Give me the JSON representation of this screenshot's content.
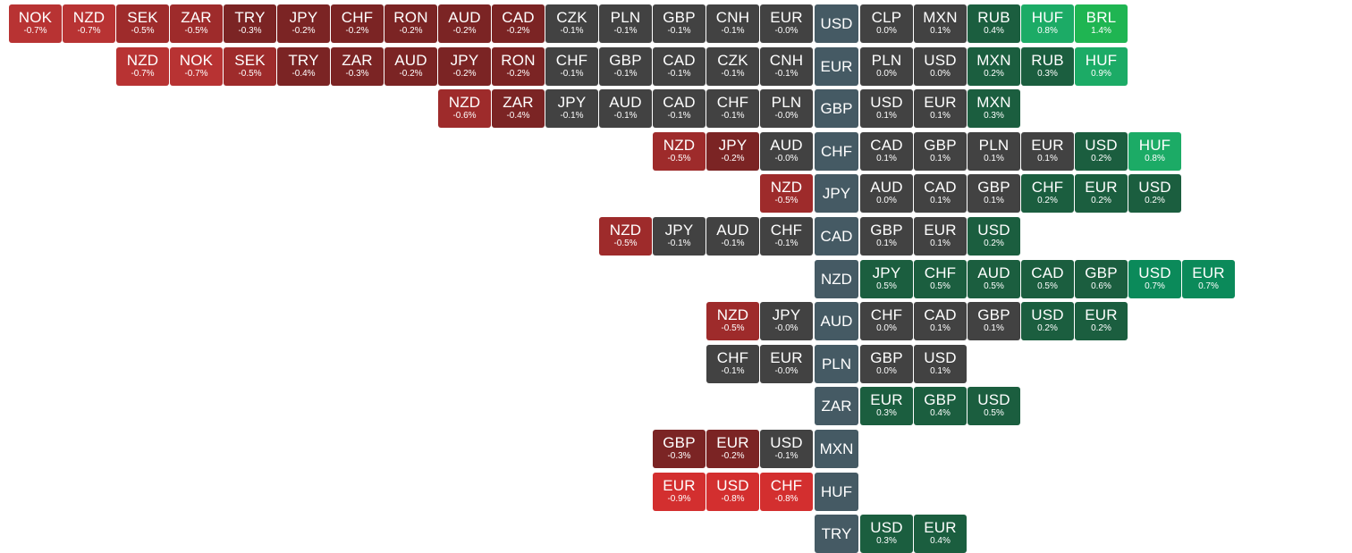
{
  "colors": {
    "base": "#455a64",
    "neutral": "#424242",
    "neg_1": "#7b2424",
    "neg_2": "#9e2b2b",
    "neg_3": "#b83333",
    "neg_4": "#d32f2f",
    "pos_1": "#1b5e3f",
    "pos_2": "#0b8a5a",
    "pos_3": "#1cab66",
    "pos_4": "#1fb552"
  },
  "chart_data": {
    "type": "heatmap",
    "unit": "%",
    "rows": [
      {
        "base": "USD",
        "weaker": [
          {
            "code": "NOK",
            "change": -0.7,
            "label": "-0.7%"
          },
          {
            "code": "NZD",
            "change": -0.7,
            "label": "-0.7%"
          },
          {
            "code": "SEK",
            "change": -0.5,
            "label": "-0.5%"
          },
          {
            "code": "ZAR",
            "change": -0.5,
            "label": "-0.5%"
          },
          {
            "code": "TRY",
            "change": -0.3,
            "label": "-0.3%"
          },
          {
            "code": "JPY",
            "change": -0.2,
            "label": "-0.2%"
          },
          {
            "code": "CHF",
            "change": -0.2,
            "label": "-0.2%"
          },
          {
            "code": "RON",
            "change": -0.2,
            "label": "-0.2%"
          },
          {
            "code": "AUD",
            "change": -0.2,
            "label": "-0.2%"
          },
          {
            "code": "CAD",
            "change": -0.2,
            "label": "-0.2%"
          },
          {
            "code": "CZK",
            "change": -0.1,
            "label": "-0.1%"
          },
          {
            "code": "PLN",
            "change": -0.1,
            "label": "-0.1%"
          },
          {
            "code": "GBP",
            "change": -0.1,
            "label": "-0.1%"
          },
          {
            "code": "CNH",
            "change": -0.1,
            "label": "-0.1%"
          },
          {
            "code": "EUR",
            "change": -0.0,
            "label": "-0.0%"
          }
        ],
        "stronger": [
          {
            "code": "CLP",
            "change": 0.0,
            "label": "0.0%"
          },
          {
            "code": "MXN",
            "change": 0.1,
            "label": "0.1%"
          },
          {
            "code": "RUB",
            "change": 0.4,
            "label": "0.4%"
          },
          {
            "code": "HUF",
            "change": 0.8,
            "label": "0.8%"
          },
          {
            "code": "BRL",
            "change": 1.4,
            "label": "1.4%"
          }
        ]
      },
      {
        "base": "EUR",
        "weaker": [
          {
            "code": "NZD",
            "change": -0.7,
            "label": "-0.7%"
          },
          {
            "code": "NOK",
            "change": -0.7,
            "label": "-0.7%"
          },
          {
            "code": "SEK",
            "change": -0.5,
            "label": "-0.5%"
          },
          {
            "code": "TRY",
            "change": -0.4,
            "label": "-0.4%"
          },
          {
            "code": "ZAR",
            "change": -0.3,
            "label": "-0.3%"
          },
          {
            "code": "AUD",
            "change": -0.2,
            "label": "-0.2%"
          },
          {
            "code": "JPY",
            "change": -0.2,
            "label": "-0.2%"
          },
          {
            "code": "RON",
            "change": -0.2,
            "label": "-0.2%"
          },
          {
            "code": "CHF",
            "change": -0.1,
            "label": "-0.1%"
          },
          {
            "code": "GBP",
            "change": -0.1,
            "label": "-0.1%"
          },
          {
            "code": "CAD",
            "change": -0.1,
            "label": "-0.1%"
          },
          {
            "code": "CZK",
            "change": -0.1,
            "label": "-0.1%"
          },
          {
            "code": "CNH",
            "change": -0.1,
            "label": "-0.1%"
          }
        ],
        "stronger": [
          {
            "code": "PLN",
            "change": 0.0,
            "label": "0.0%"
          },
          {
            "code": "USD",
            "change": 0.0,
            "label": "0.0%"
          },
          {
            "code": "MXN",
            "change": 0.2,
            "label": "0.2%"
          },
          {
            "code": "RUB",
            "change": 0.3,
            "label": "0.3%"
          },
          {
            "code": "HUF",
            "change": 0.9,
            "label": "0.9%"
          }
        ]
      },
      {
        "base": "GBP",
        "weaker": [
          {
            "code": "NZD",
            "change": -0.6,
            "label": "-0.6%"
          },
          {
            "code": "ZAR",
            "change": -0.4,
            "label": "-0.4%"
          },
          {
            "code": "JPY",
            "change": -0.1,
            "label": "-0.1%"
          },
          {
            "code": "AUD",
            "change": -0.1,
            "label": "-0.1%"
          },
          {
            "code": "CAD",
            "change": -0.1,
            "label": "-0.1%"
          },
          {
            "code": "CHF",
            "change": -0.1,
            "label": "-0.1%"
          },
          {
            "code": "PLN",
            "change": -0.0,
            "label": "-0.0%"
          }
        ],
        "stronger": [
          {
            "code": "USD",
            "change": 0.1,
            "label": "0.1%"
          },
          {
            "code": "EUR",
            "change": 0.1,
            "label": "0.1%"
          },
          {
            "code": "MXN",
            "change": 0.3,
            "label": "0.3%"
          }
        ]
      },
      {
        "base": "CHF",
        "weaker": [
          {
            "code": "NZD",
            "change": -0.5,
            "label": "-0.5%"
          },
          {
            "code": "JPY",
            "change": -0.2,
            "label": "-0.2%"
          },
          {
            "code": "AUD",
            "change": -0.0,
            "label": "-0.0%"
          }
        ],
        "stronger": [
          {
            "code": "CAD",
            "change": 0.1,
            "label": "0.1%"
          },
          {
            "code": "GBP",
            "change": 0.1,
            "label": "0.1%"
          },
          {
            "code": "PLN",
            "change": 0.1,
            "label": "0.1%"
          },
          {
            "code": "EUR",
            "change": 0.1,
            "label": "0.1%"
          },
          {
            "code": "USD",
            "change": 0.2,
            "label": "0.2%"
          },
          {
            "code": "HUF",
            "change": 0.8,
            "label": "0.8%"
          }
        ]
      },
      {
        "base": "JPY",
        "weaker": [
          {
            "code": "NZD",
            "change": -0.5,
            "label": "-0.5%"
          }
        ],
        "stronger": [
          {
            "code": "AUD",
            "change": 0.0,
            "label": "0.0%"
          },
          {
            "code": "CAD",
            "change": 0.1,
            "label": "0.1%"
          },
          {
            "code": "GBP",
            "change": 0.1,
            "label": "0.1%"
          },
          {
            "code": "CHF",
            "change": 0.2,
            "label": "0.2%"
          },
          {
            "code": "EUR",
            "change": 0.2,
            "label": "0.2%"
          },
          {
            "code": "USD",
            "change": 0.2,
            "label": "0.2%"
          }
        ]
      },
      {
        "base": "CAD",
        "weaker": [
          {
            "code": "NZD",
            "change": -0.5,
            "label": "-0.5%"
          },
          {
            "code": "JPY",
            "change": -0.1,
            "label": "-0.1%"
          },
          {
            "code": "AUD",
            "change": -0.1,
            "label": "-0.1%"
          },
          {
            "code": "CHF",
            "change": -0.1,
            "label": "-0.1%"
          }
        ],
        "stronger": [
          {
            "code": "GBP",
            "change": 0.1,
            "label": "0.1%"
          },
          {
            "code": "EUR",
            "change": 0.1,
            "label": "0.1%"
          },
          {
            "code": "USD",
            "change": 0.2,
            "label": "0.2%"
          }
        ]
      },
      {
        "base": "NZD",
        "weaker": [],
        "stronger": [
          {
            "code": "JPY",
            "change": 0.5,
            "label": "0.5%"
          },
          {
            "code": "CHF",
            "change": 0.5,
            "label": "0.5%"
          },
          {
            "code": "AUD",
            "change": 0.5,
            "label": "0.5%"
          },
          {
            "code": "CAD",
            "change": 0.5,
            "label": "0.5%"
          },
          {
            "code": "GBP",
            "change": 0.6,
            "label": "0.6%"
          },
          {
            "code": "USD",
            "change": 0.7,
            "label": "0.7%"
          },
          {
            "code": "EUR",
            "change": 0.7,
            "label": "0.7%"
          }
        ]
      },
      {
        "base": "AUD",
        "weaker": [
          {
            "code": "NZD",
            "change": -0.5,
            "label": "-0.5%"
          },
          {
            "code": "JPY",
            "change": -0.0,
            "label": "-0.0%"
          }
        ],
        "stronger": [
          {
            "code": "CHF",
            "change": 0.0,
            "label": "0.0%"
          },
          {
            "code": "CAD",
            "change": 0.1,
            "label": "0.1%"
          },
          {
            "code": "GBP",
            "change": 0.1,
            "label": "0.1%"
          },
          {
            "code": "USD",
            "change": 0.2,
            "label": "0.2%"
          },
          {
            "code": "EUR",
            "change": 0.2,
            "label": "0.2%"
          }
        ]
      },
      {
        "base": "PLN",
        "weaker": [
          {
            "code": "CHF",
            "change": -0.1,
            "label": "-0.1%"
          },
          {
            "code": "EUR",
            "change": -0.0,
            "label": "-0.0%"
          }
        ],
        "stronger": [
          {
            "code": "GBP",
            "change": 0.0,
            "label": "0.0%"
          },
          {
            "code": "USD",
            "change": 0.1,
            "label": "0.1%"
          }
        ]
      },
      {
        "base": "ZAR",
        "weaker": [],
        "stronger": [
          {
            "code": "EUR",
            "change": 0.3,
            "label": "0.3%"
          },
          {
            "code": "GBP",
            "change": 0.4,
            "label": "0.4%"
          },
          {
            "code": "USD",
            "change": 0.5,
            "label": "0.5%"
          }
        ]
      },
      {
        "base": "MXN",
        "weaker": [
          {
            "code": "GBP",
            "change": -0.3,
            "label": "-0.3%"
          },
          {
            "code": "EUR",
            "change": -0.2,
            "label": "-0.2%"
          },
          {
            "code": "USD",
            "change": -0.1,
            "label": "-0.1%"
          }
        ],
        "stronger": []
      },
      {
        "base": "HUF",
        "weaker": [
          {
            "code": "EUR",
            "change": -0.9,
            "label": "-0.9%"
          },
          {
            "code": "USD",
            "change": -0.8,
            "label": "-0.8%"
          },
          {
            "code": "CHF",
            "change": -0.8,
            "label": "-0.8%"
          }
        ],
        "stronger": []
      },
      {
        "base": "TRY",
        "weaker": [],
        "stronger": [
          {
            "code": "USD",
            "change": 0.3,
            "label": "0.3%"
          },
          {
            "code": "EUR",
            "change": 0.4,
            "label": "0.4%"
          }
        ]
      }
    ]
  }
}
